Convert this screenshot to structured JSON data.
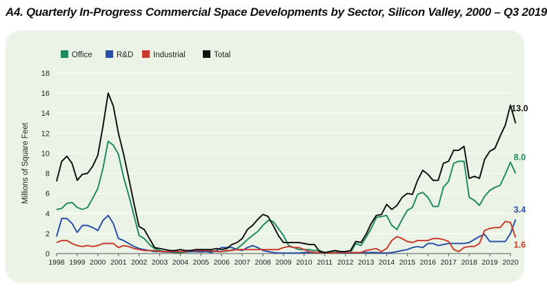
{
  "colors": {
    "panel": "#eaf3e6",
    "grid": "#ffffff",
    "axis": "#555555",
    "text": "#222222"
  },
  "chart_data": {
    "type": "line",
    "title": "A4. Quarterly In-Progress Commercial Space Developments by Sector, Silicon Valley, 2000 – Q3 2019",
    "ylabel": "Millions of Square Feet",
    "xlabel": "",
    "ylim": [
      0,
      18
    ],
    "yticks": [
      "0",
      "2",
      "4",
      "6",
      "8",
      "10",
      "12",
      "14",
      "16",
      "18"
    ],
    "xlim": [
      1998,
      2020
    ],
    "xticks": [
      "1998",
      "1999",
      "2000",
      "2001",
      "2002",
      "2003",
      "2004",
      "2005",
      "2006",
      "2007",
      "2008",
      "2009",
      "2010",
      "2011",
      "2012",
      "2013",
      "2014",
      "2015",
      "2016",
      "2017",
      "2018",
      "2019",
      "2020"
    ],
    "grid": true,
    "legend": "top-left",
    "x_start": 1998,
    "x_step": 0.25,
    "series": [
      {
        "name": "Office",
        "color": "#1f8a5f",
        "values": [
          4.4,
          4.5,
          5.0,
          5.1,
          4.6,
          4.4,
          4.6,
          5.5,
          6.5,
          8.5,
          11.2,
          10.8,
          9.9,
          7.6,
          5.8,
          3.8,
          1.8,
          1.5,
          0.9,
          0.5,
          0.3,
          0.2,
          0.15,
          0.1,
          0.1,
          0.15,
          0.2,
          0.2,
          0.2,
          0.25,
          0.2,
          0.2,
          0.2,
          0.25,
          0.35,
          0.5,
          0.9,
          1.4,
          1.8,
          2.2,
          2.8,
          3.3,
          3.2,
          2.5,
          1.8,
          0.8,
          0.6,
          0.4,
          0.4,
          0.4,
          0.3,
          0.3,
          0.1,
          0.1,
          0.1,
          0.2,
          0.1,
          0.1,
          1.0,
          0.8,
          1.6,
          2.5,
          3.6,
          3.7,
          3.8,
          2.8,
          2.4,
          3.4,
          4.3,
          4.6,
          5.9,
          6.1,
          5.6,
          4.7,
          4.7,
          6.6,
          7.2,
          9.0,
          9.2,
          9.2,
          5.6,
          5.3,
          4.8,
          5.7,
          6.3,
          6.6,
          6.8,
          7.9,
          9.1,
          8.0
        ]
      },
      {
        "name": "R&D",
        "color": "#2a4fa8",
        "values": [
          1.7,
          3.5,
          3.5,
          3.0,
          2.1,
          2.8,
          2.8,
          2.6,
          2.3,
          3.3,
          3.8,
          3.0,
          1.5,
          1.3,
          1.0,
          0.7,
          0.5,
          0.4,
          0.3,
          0.2,
          0.2,
          0.15,
          0.15,
          0.2,
          0.2,
          0.15,
          0.2,
          0.2,
          0.15,
          0.2,
          0.1,
          0.3,
          0.6,
          0.6,
          0.6,
          0.4,
          0.3,
          0.6,
          0.8,
          0.6,
          0.3,
          0.2,
          0.1,
          0.05,
          0.05,
          0.05,
          0.05,
          0.05,
          0.1,
          0.1,
          0.1,
          0.1,
          0.1,
          0.05,
          0.05,
          0.05,
          0.05,
          0.05,
          0.1,
          0.1,
          0.1,
          0.1,
          0.1,
          0.05,
          0.05,
          0.1,
          0.2,
          0.3,
          0.4,
          0.6,
          0.7,
          0.6,
          1.0,
          1.0,
          0.8,
          0.9,
          1.0,
          1.0,
          1.0,
          1.0,
          1.1,
          1.4,
          1.7,
          1.9,
          1.2,
          1.2,
          1.2,
          1.2,
          2.0,
          3.4
        ]
      },
      {
        "name": "Industrial",
        "color": "#c8392b",
        "values": [
          1.1,
          1.3,
          1.3,
          1.0,
          0.8,
          0.7,
          0.8,
          0.7,
          0.8,
          1.0,
          1.0,
          1.0,
          0.6,
          0.8,
          0.7,
          0.5,
          0.4,
          0.3,
          0.3,
          0.3,
          0.2,
          0.2,
          0.2,
          0.2,
          0.2,
          0.2,
          0.3,
          0.3,
          0.3,
          0.3,
          0.3,
          0.2,
          0.2,
          0.3,
          0.3,
          0.4,
          0.4,
          0.4,
          0.4,
          0.4,
          0.4,
          0.4,
          0.4,
          0.4,
          0.6,
          0.7,
          0.6,
          0.6,
          0.4,
          0.2,
          0.1,
          0.1,
          0.1,
          0.05,
          0.05,
          0.1,
          0.1,
          0.1,
          0.1,
          0.1,
          0.3,
          0.4,
          0.5,
          0.2,
          0.5,
          1.3,
          1.7,
          1.5,
          1.2,
          1.1,
          1.3,
          1.3,
          1.3,
          1.5,
          1.5,
          1.4,
          1.2,
          0.4,
          0.2,
          0.6,
          0.7,
          0.7,
          1.0,
          2.3,
          2.5,
          2.6,
          2.6,
          3.2,
          3.1,
          1.6
        ]
      },
      {
        "name": "Total",
        "color": "#111111",
        "values": [
          7.2,
          9.2,
          9.7,
          9.0,
          7.3,
          7.9,
          8.0,
          8.7,
          9.8,
          12.7,
          16.0,
          14.7,
          12.0,
          9.9,
          7.5,
          5.0,
          2.7,
          2.4,
          1.5,
          0.6,
          0.5,
          0.4,
          0.3,
          0.3,
          0.4,
          0.3,
          0.3,
          0.4,
          0.4,
          0.4,
          0.4,
          0.5,
          0.4,
          0.5,
          0.9,
          1.1,
          1.5,
          2.4,
          2.8,
          3.4,
          3.9,
          3.7,
          2.8,
          1.8,
          1.1,
          1.1,
          1.1,
          1.1,
          1.0,
          0.9,
          0.9,
          0.2,
          0.1,
          0.2,
          0.3,
          0.2,
          0.2,
          0.3,
          1.2,
          1.1,
          1.9,
          3.0,
          3.8,
          3.9,
          4.9,
          4.4,
          4.8,
          5.6,
          6.0,
          5.9,
          7.3,
          8.3,
          7.9,
          7.3,
          7.3,
          9.0,
          9.2,
          10.3,
          10.3,
          10.7,
          7.5,
          7.7,
          7.5,
          9.4,
          10.2,
          10.5,
          11.7,
          12.8,
          14.8,
          13.0
        ]
      }
    ],
    "annotations": [
      {
        "text": "13.0",
        "series": "Total"
      },
      {
        "text": "8.0",
        "series": "Office"
      },
      {
        "text": "3.4",
        "series": "R&D"
      },
      {
        "text": "1.6",
        "series": "Industrial"
      }
    ]
  }
}
